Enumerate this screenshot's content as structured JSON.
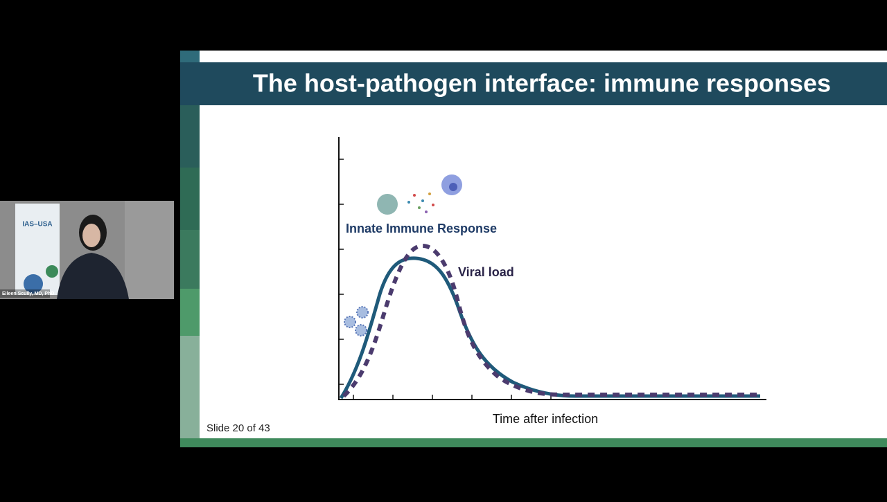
{
  "slide": {
    "title": "The host-pathogen interface: immune responses",
    "innate_label": "Innate Immune Response",
    "viral_label": "Viral load",
    "x_axis_label": "Time after infection",
    "counter": "Slide 20 of 43"
  },
  "webcam": {
    "banner": "IAS–USA",
    "caption": "Eileen Scully, MD, PhD"
  }
}
